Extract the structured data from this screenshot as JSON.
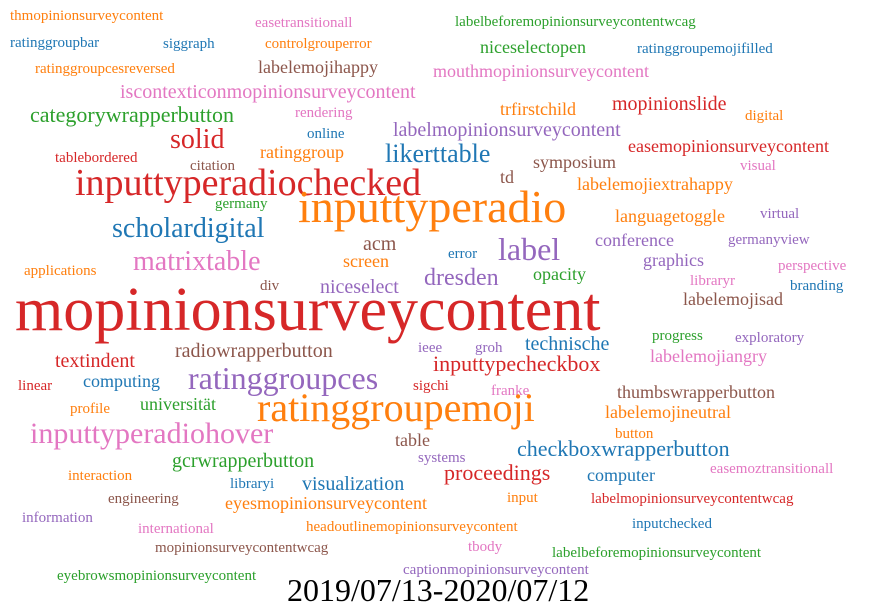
{
  "words": [
    "thmopinionsurveycontent",
    "easetransitionall",
    "labelbeforemopinionsurveycontentwcag",
    "ratinggroupbar",
    "siggraph",
    "controlgrouperror",
    "niceselectopen",
    "ratinggroupemojifilled",
    "ratinggroupcesreversed",
    "labelemojihappy",
    "mouthmopinionsurveycontent",
    "iscontexticonmopinionsurveycontent",
    "rendering",
    "trfirstchild",
    "mopinionslide",
    "digital",
    "categorywrapperbutton",
    "solid",
    "online",
    "labelmopinionsurveycontent",
    "easemopinionsurveycontent",
    "likerttable",
    "tablebordered",
    "ratinggroup",
    "citation",
    "symposium",
    "visual",
    "inputtyperadiochecked",
    "td",
    "labelemojiextrahappy",
    "germany",
    "inputtyperadio",
    "scholardigital",
    "languagetoggle",
    "virtual",
    "label",
    "conference",
    "acm",
    "error",
    "germanyview",
    "matrixtable",
    "screen",
    "graphics",
    "dresden",
    "opacity",
    "perspective",
    "applications",
    "libraryr",
    "branding",
    "div",
    "niceselect",
    "mopinionsurveycontent",
    "labelemojisad",
    "progress",
    "exploratory",
    "technische",
    "radiowrapperbutton",
    "ieee",
    "groh",
    "textindent",
    "inputtypecheckbox",
    "labelemojiangry",
    "ratinggroupces",
    "sigchi",
    "linear",
    "computing",
    "franke",
    "thumbswrapperbutton",
    "universität",
    "profile",
    "ratinggroupemoji",
    "labelemojineutral",
    "button",
    "inputtyperadiohover",
    "table",
    "checkboxwrapperbutton",
    "gcrwrapperbutton",
    "systems",
    "proceedings",
    "easemoztransitionall",
    "computer",
    "interaction",
    "visualization",
    "libraryi",
    "engineering",
    "eyesmopinionsurveycontent",
    "input",
    "labelmopinionsurveycontentwcag",
    "information",
    "headoutlinemopinionsurveycontent",
    "international",
    "inputchecked",
    "mopinionsurveycontentwcag",
    "tbody",
    "labelbeforemopinionsurveycontent",
    "captionmopinionsurveycontent",
    "eyebrowsmopinionsurveycontent"
  ],
  "caption": "2019/07/13-2020/07/12"
}
